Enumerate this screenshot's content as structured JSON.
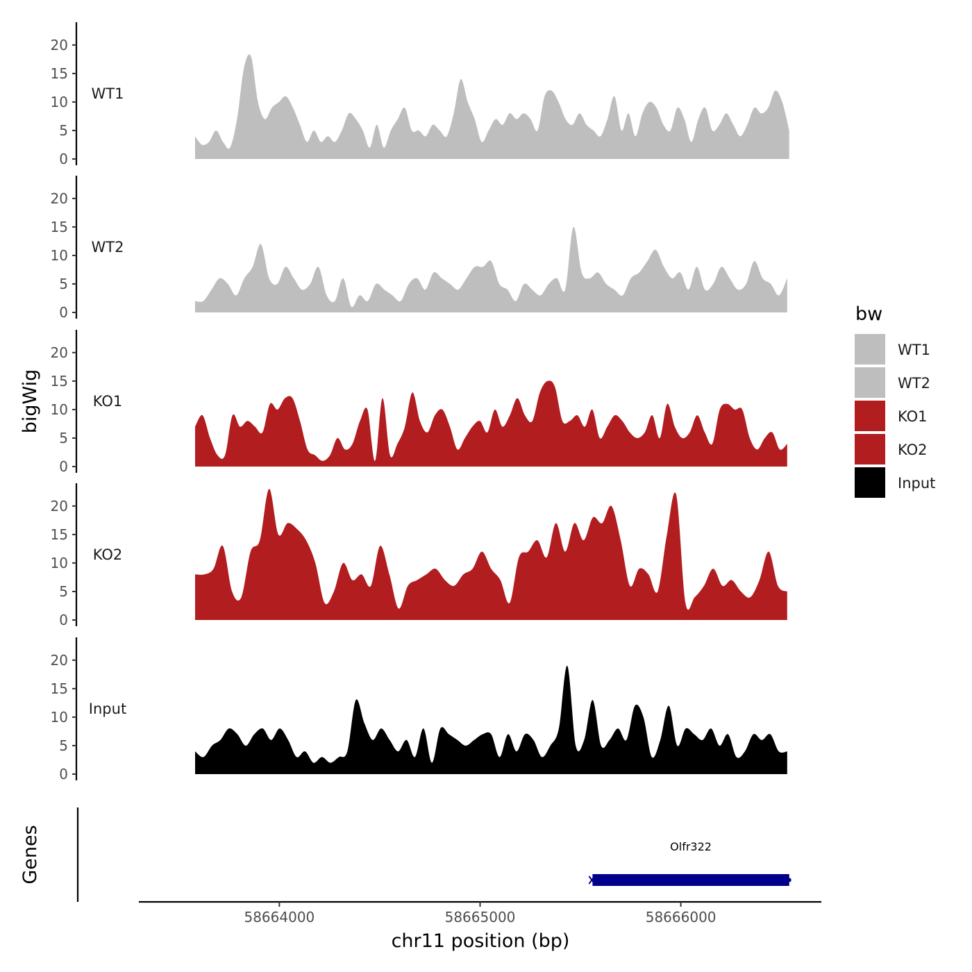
{
  "chart_data": {
    "type": "area",
    "title": "",
    "xlabel": "chr11 position (bp)",
    "ylabel": "bigWig",
    "genes_label": "Genes",
    "xlim": [
      58663300,
      58666700
    ],
    "ylim": [
      0,
      24
    ],
    "yticks": [
      "0",
      "5",
      "10",
      "15",
      "20"
    ],
    "xticks": [
      {
        "value": 58664000,
        "label": "58664000"
      },
      {
        "value": 58665000,
        "label": "58665000"
      },
      {
        "value": 58666000,
        "label": "58666000"
      }
    ],
    "legend": {
      "title": "bw",
      "position": "right",
      "entries": [
        {
          "label": "WT1",
          "color": "#bebebe"
        },
        {
          "label": "WT2",
          "color": "#bebebe"
        },
        {
          "label": "KO1",
          "color": "#b21d20"
        },
        {
          "label": "KO2",
          "color": "#b21d20"
        },
        {
          "label": "Input",
          "color": "#000000"
        }
      ]
    },
    "x_start": 58663580,
    "x_step": 100,
    "tracks": [
      {
        "name": "WT1",
        "color": "#bebebe",
        "x_end": 58666540,
        "values": [
          4,
          2.5,
          3,
          5,
          3,
          2,
          7,
          16,
          18,
          10,
          7,
          9,
          10,
          11,
          9,
          6,
          3,
          5,
          3,
          4,
          3,
          5,
          8,
          7,
          5,
          2,
          6,
          2,
          5,
          7,
          9,
          5,
          5,
          4,
          6,
          5,
          4,
          8,
          14,
          10,
          7,
          3,
          5,
          7,
          6,
          8,
          7,
          8,
          7,
          5,
          11,
          12,
          10,
          7,
          6,
          8,
          6,
          5,
          4,
          7,
          11,
          5,
          8,
          4,
          8,
          10,
          9,
          6,
          5,
          9,
          7,
          3,
          7,
          9,
          5,
          6,
          8,
          6,
          4,
          6,
          9,
          8,
          9,
          12,
          10,
          5
        ]
      },
      {
        "name": "WT2",
        "color": "#bebebe",
        "x_end": 58666530,
        "values": [
          2,
          2,
          4,
          6,
          5,
          3,
          6,
          8,
          12,
          6,
          5,
          8,
          6,
          4,
          5,
          8,
          3,
          2,
          6,
          1,
          3,
          2,
          5,
          4,
          3,
          2,
          5,
          6,
          4,
          7,
          6,
          5,
          4,
          6,
          8,
          8,
          9,
          5,
          4,
          2,
          5,
          4,
          3,
          5,
          6,
          4,
          15,
          7,
          6,
          7,
          5,
          4,
          3,
          6,
          7,
          9,
          11,
          8,
          6,
          7,
          4,
          8,
          4,
          5,
          8,
          6,
          4,
          5,
          9,
          6,
          5,
          3,
          6
        ]
      },
      {
        "name": "KO1",
        "color": "#b21d20",
        "x_end": 58666530,
        "values": [
          7,
          9,
          5,
          2,
          2,
          9,
          7,
          8,
          7,
          6,
          11,
          10,
          12,
          12,
          8,
          3,
          2,
          1,
          2,
          5,
          3,
          4,
          8,
          10,
          1,
          12,
          2,
          4,
          7,
          13,
          8,
          6,
          9,
          10,
          7,
          3,
          5,
          7,
          8,
          6,
          10,
          7,
          9,
          12,
          9,
          8,
          13,
          15,
          14,
          8,
          8,
          9,
          7,
          10,
          5,
          7,
          9,
          8,
          6,
          5,
          6,
          9,
          5,
          11,
          7,
          5,
          6,
          9,
          6,
          4,
          10,
          11,
          10,
          10,
          5,
          3,
          5,
          6,
          3,
          4
        ]
      },
      {
        "name": "KO2",
        "color": "#b21d20",
        "x_end": 58666530,
        "values": [
          8,
          8,
          9,
          13,
          5,
          4,
          12,
          14,
          23,
          15,
          17,
          16,
          14,
          10,
          3,
          5,
          10,
          7,
          8,
          6,
          13,
          8,
          2,
          6,
          7,
          8,
          9,
          7,
          6,
          8,
          9,
          12,
          9,
          7,
          3,
          11,
          12,
          14,
          11,
          17,
          12,
          17,
          14,
          18,
          17,
          20,
          14,
          6,
          9,
          8,
          5,
          15,
          22,
          3,
          4,
          6,
          9,
          6,
          7,
          5,
          4,
          7,
          12,
          6,
          5
        ]
      },
      {
        "name": "Input",
        "color": "#000000",
        "x_end": 58666530,
        "values": [
          4,
          3,
          5,
          6,
          8,
          7,
          5,
          7,
          8,
          6,
          8,
          6,
          3,
          4,
          2,
          3,
          2,
          3,
          4,
          13,
          9,
          6,
          8,
          6,
          4,
          6,
          3,
          8,
          2,
          8,
          7,
          6,
          5,
          6,
          7,
          7,
          3,
          7,
          4,
          7,
          6,
          3,
          5,
          8,
          19,
          5,
          6,
          13,
          5,
          6,
          8,
          6,
          12,
          10,
          3,
          6,
          12,
          5,
          8,
          7,
          6,
          8,
          5,
          7,
          3,
          4,
          7,
          6,
          7,
          4,
          4
        ]
      }
    ],
    "gene": {
      "name": "Olfr322",
      "start": 58665560,
      "end": 58666540,
      "color": "#00008b"
    }
  }
}
